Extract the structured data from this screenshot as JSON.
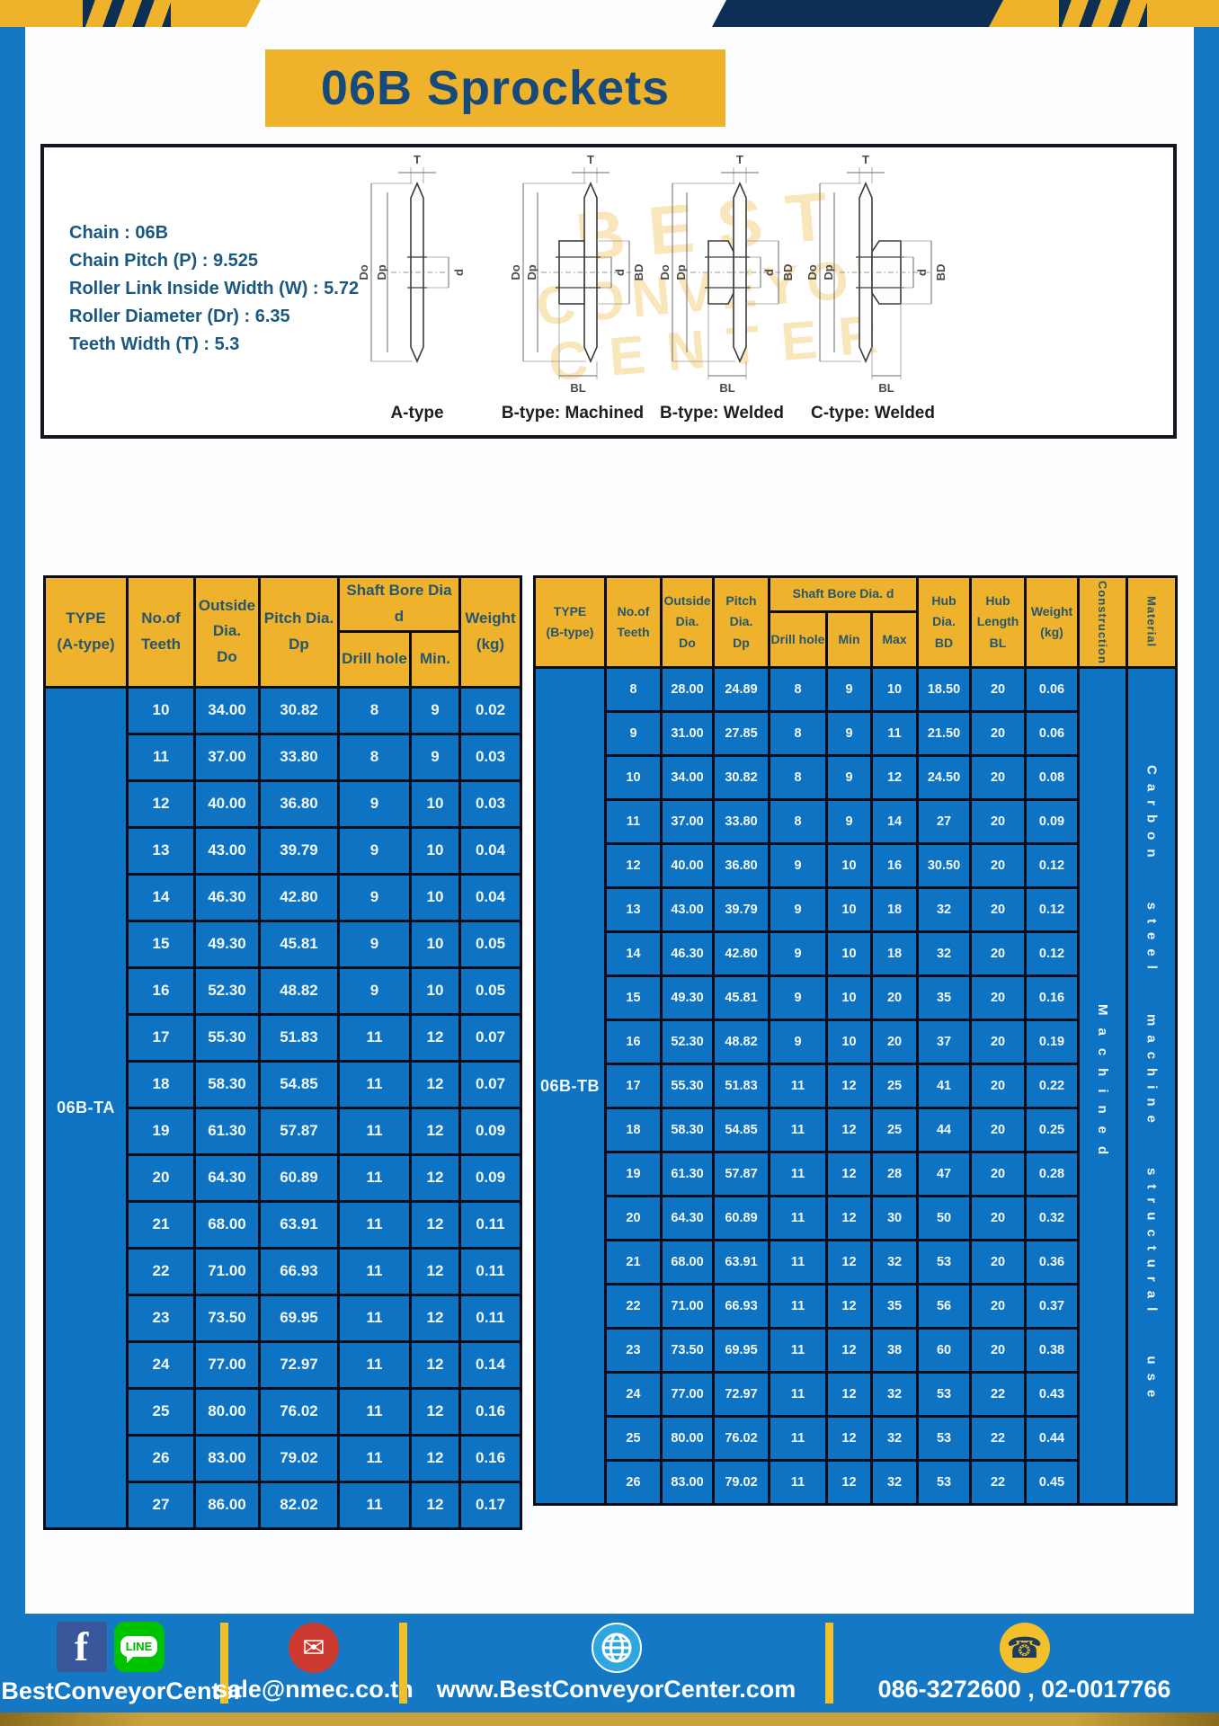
{
  "page": {
    "title": "06B Sprockets"
  },
  "specs": {
    "lines": [
      "Chain : 06B",
      "Chain Pitch (P) : 9.525",
      "Roller Link Inside Width (W) : 5.72",
      "Roller Diameter (Dr) : 6.35",
      "Teeth Width (T) : 5.3"
    ]
  },
  "watermark": {
    "line1": "BEST",
    "line2": "CONVEYOR",
    "line3": "CENTER"
  },
  "diagrams": {
    "labels": [
      "A-type",
      "B-type: Machined",
      "B-type: Welded",
      "C-type: Welded"
    ],
    "dims": {
      "t": "T",
      "do": "Do",
      "dp": "Dp",
      "d": "d",
      "bd": "BD",
      "bl": "BL"
    }
  },
  "table_a": {
    "header": {
      "type": "TYPE\n(A-type)",
      "teeth": "No.of\nTeeth",
      "outside": "Outside\nDia.\nDo",
      "pitch": "Pitch Dia.\nDp",
      "shaft": "Shaft Bore Dia d",
      "drill": "Drill hole",
      "min": "Min.",
      "weight": "Weight\n(kg)"
    },
    "type_value": "06B-TA",
    "rows": [
      [
        "10",
        "34.00",
        "30.82",
        "8",
        "9",
        "0.02"
      ],
      [
        "11",
        "37.00",
        "33.80",
        "8",
        "9",
        "0.03"
      ],
      [
        "12",
        "40.00",
        "36.80",
        "9",
        "10",
        "0.03"
      ],
      [
        "13",
        "43.00",
        "39.79",
        "9",
        "10",
        "0.04"
      ],
      [
        "14",
        "46.30",
        "42.80",
        "9",
        "10",
        "0.04"
      ],
      [
        "15",
        "49.30",
        "45.81",
        "9",
        "10",
        "0.05"
      ],
      [
        "16",
        "52.30",
        "48.82",
        "9",
        "10",
        "0.05"
      ],
      [
        "17",
        "55.30",
        "51.83",
        "11",
        "12",
        "0.07"
      ],
      [
        "18",
        "58.30",
        "54.85",
        "11",
        "12",
        "0.07"
      ],
      [
        "19",
        "61.30",
        "57.87",
        "11",
        "12",
        "0.09"
      ],
      [
        "20",
        "64.30",
        "60.89",
        "11",
        "12",
        "0.09"
      ],
      [
        "21",
        "68.00",
        "63.91",
        "11",
        "12",
        "0.11"
      ],
      [
        "22",
        "71.00",
        "66.93",
        "11",
        "12",
        "0.11"
      ],
      [
        "23",
        "73.50",
        "69.95",
        "11",
        "12",
        "0.11"
      ],
      [
        "24",
        "77.00",
        "72.97",
        "11",
        "12",
        "0.14"
      ],
      [
        "25",
        "80.00",
        "76.02",
        "11",
        "12",
        "0.16"
      ],
      [
        "26",
        "83.00",
        "79.02",
        "11",
        "12",
        "0.16"
      ],
      [
        "27",
        "86.00",
        "82.02",
        "11",
        "12",
        "0.17"
      ]
    ]
  },
  "table_b": {
    "header": {
      "type": "TYPE\n(B-type)",
      "teeth": "No.of\nTeeth",
      "outside": "Outside\nDia.\nDo",
      "pitch": "Pitch\nDia.\nDp",
      "shaft": "Shaft Bore Dia.  d",
      "drill": "Drill hole",
      "min": "Min",
      "max": "Max",
      "hub_dia": "Hub\nDia.\nBD",
      "hub_len": "Hub\nLength\nBL",
      "weight": "Weight\n(kg)",
      "construction": "Construction",
      "material": "Material"
    },
    "type_value": "06B-TB",
    "construction_value": "Machined",
    "material_value": "Carbon steel machine structural use",
    "rows": [
      [
        "8",
        "28.00",
        "24.89",
        "8",
        "9",
        "10",
        "18.50",
        "20",
        "0.06"
      ],
      [
        "9",
        "31.00",
        "27.85",
        "8",
        "9",
        "11",
        "21.50",
        "20",
        "0.06"
      ],
      [
        "10",
        "34.00",
        "30.82",
        "8",
        "9",
        "12",
        "24.50",
        "20",
        "0.08"
      ],
      [
        "11",
        "37.00",
        "33.80",
        "8",
        "9",
        "14",
        "27",
        "20",
        "0.09"
      ],
      [
        "12",
        "40.00",
        "36.80",
        "9",
        "10",
        "16",
        "30.50",
        "20",
        "0.12"
      ],
      [
        "13",
        "43.00",
        "39.79",
        "9",
        "10",
        "18",
        "32",
        "20",
        "0.12"
      ],
      [
        "14",
        "46.30",
        "42.80",
        "9",
        "10",
        "18",
        "32",
        "20",
        "0.12"
      ],
      [
        "15",
        "49.30",
        "45.81",
        "9",
        "10",
        "20",
        "35",
        "20",
        "0.16"
      ],
      [
        "16",
        "52.30",
        "48.82",
        "9",
        "10",
        "20",
        "37",
        "20",
        "0.19"
      ],
      [
        "17",
        "55.30",
        "51.83",
        "11",
        "12",
        "25",
        "41",
        "20",
        "0.22"
      ],
      [
        "18",
        "58.30",
        "54.85",
        "11",
        "12",
        "25",
        "44",
        "20",
        "0.25"
      ],
      [
        "19",
        "61.30",
        "57.87",
        "11",
        "12",
        "28",
        "47",
        "20",
        "0.28"
      ],
      [
        "20",
        "64.30",
        "60.89",
        "11",
        "12",
        "30",
        "50",
        "20",
        "0.32"
      ],
      [
        "21",
        "68.00",
        "63.91",
        "11",
        "12",
        "32",
        "53",
        "20",
        "0.36"
      ],
      [
        "22",
        "71.00",
        "66.93",
        "11",
        "12",
        "35",
        "56",
        "20",
        "0.37"
      ],
      [
        "23",
        "73.50",
        "69.95",
        "11",
        "12",
        "38",
        "60",
        "20",
        "0.38"
      ],
      [
        "24",
        "77.00",
        "72.97",
        "11",
        "12",
        "32",
        "53",
        "22",
        "0.43"
      ],
      [
        "25",
        "80.00",
        "76.02",
        "11",
        "12",
        "32",
        "53",
        "22",
        "0.44"
      ],
      [
        "26",
        "83.00",
        "79.02",
        "11",
        "12",
        "32",
        "53",
        "22",
        "0.45"
      ]
    ]
  },
  "footer": {
    "facebook_f": "f",
    "line_label": "LINE",
    "mail_glyph": "✉",
    "phone_glyph": "☎",
    "facebook_line": "@BestConveyorCenter",
    "email": "sale@nmec.co.th",
    "website": "www.BestConveyorCenter.com",
    "phone": "086-3272600 , 02-0017766"
  },
  "colors": {
    "accent_yellow": "#efb32b",
    "frame_blue": "#1478c4",
    "cell_blue": "#0e73c2",
    "navy": "#0d2f55",
    "gold_strip": "#c9a23d"
  }
}
